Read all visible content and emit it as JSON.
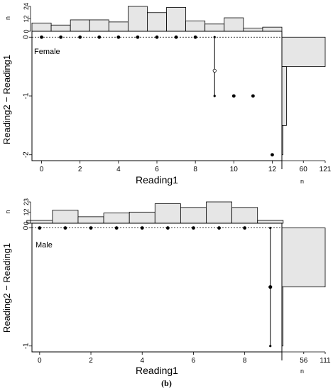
{
  "caption": "(b)",
  "chart_data": [
    {
      "type": "scatter",
      "title": "Female",
      "xlabel": "Reading1",
      "ylabel": "Reading2 − Reading1",
      "xlim": [
        -0.5,
        12.5
      ],
      "ylim": [
        -2.1,
        0.1
      ],
      "x_ticks": [
        "0",
        "2",
        "4",
        "6",
        "8",
        "10",
        "12"
      ],
      "y_ticks": [
        "0",
        "-1",
        "-2"
      ],
      "points": [
        {
          "x": 0,
          "y": 0
        },
        {
          "x": 1,
          "y": 0
        },
        {
          "x": 2,
          "y": 0
        },
        {
          "x": 3,
          "y": 0
        },
        {
          "x": 4,
          "y": 0
        },
        {
          "x": 5,
          "y": 0
        },
        {
          "x": 6,
          "y": 0
        },
        {
          "x": 7,
          "y": 0
        },
        {
          "x": 8,
          "y": 0
        },
        {
          "x": 10,
          "y": -1
        },
        {
          "x": 11,
          "y": -1
        },
        {
          "x": 12,
          "y": -2
        }
      ],
      "ranges": [
        {
          "x": 9,
          "ymin": -1,
          "ymax": 0,
          "mean": -0.57
        }
      ],
      "top_histogram": {
        "ylabel": "n",
        "y_ticks": [
          "0",
          "12",
          "24"
        ],
        "ymax": 24,
        "x": [
          0,
          1,
          2,
          3,
          4,
          5,
          6,
          7,
          8,
          9,
          10,
          11,
          12
        ],
        "counts": [
          8,
          6,
          11,
          11,
          9,
          24,
          18,
          23,
          10,
          7,
          13,
          3,
          4
        ]
      },
      "side_histogram": {
        "xlabel": "n",
        "x_ticks": [
          "60",
          "121"
        ],
        "xmax": 121,
        "bins": [
          {
            "y0": -0.5,
            "y1": 0.0,
            "count": 121
          },
          {
            "y0": -1.5,
            "y1": -0.5,
            "count": 13
          },
          {
            "y0": -2.0,
            "y1": -1.5,
            "count": 3
          }
        ]
      }
    },
    {
      "type": "scatter",
      "title": "Male",
      "xlabel": "Reading1",
      "ylabel": "Reading2 − Reading1",
      "xlim": [
        -0.3,
        9.45
      ],
      "ylim": [
        -1.05,
        0.04
      ],
      "x_ticks": [
        "0",
        "2",
        "4",
        "6",
        "8"
      ],
      "y_ticks": [
        "0",
        "-1"
      ],
      "points": [
        {
          "x": 0,
          "y": 0
        },
        {
          "x": 1,
          "y": 0
        },
        {
          "x": 2,
          "y": 0
        },
        {
          "x": 3,
          "y": 0
        },
        {
          "x": 4,
          "y": 0
        },
        {
          "x": 5,
          "y": 0
        },
        {
          "x": 6,
          "y": 0
        },
        {
          "x": 7,
          "y": 0
        },
        {
          "x": 8,
          "y": 0
        }
      ],
      "ranges": [
        {
          "x": 9,
          "ymin": -1,
          "ymax": 0,
          "mean": -0.5
        }
      ],
      "top_histogram": {
        "ylabel": "n",
        "y_ticks": [
          "0",
          "12",
          "23"
        ],
        "ymax": 23,
        "x": [
          0,
          1,
          2,
          3,
          4,
          5,
          6,
          7,
          8,
          9
        ],
        "counts": [
          3,
          14,
          7,
          11,
          12,
          21,
          17,
          23,
          17,
          3
        ]
      },
      "side_histogram": {
        "xlabel": "n",
        "x_ticks": [
          "56",
          "111"
        ],
        "xmax": 111,
        "bins": [
          {
            "y0": -0.5,
            "y1": 0.0,
            "count": 111
          },
          {
            "y0": -1.0,
            "y1": -0.5,
            "count": 3
          }
        ]
      }
    }
  ]
}
